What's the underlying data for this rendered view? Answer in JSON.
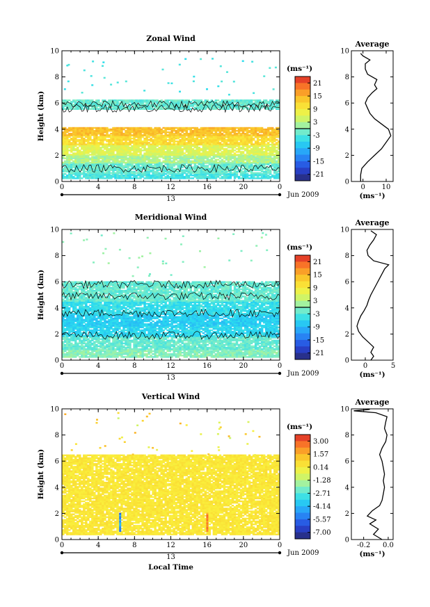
{
  "chart_data": [
    {
      "type": "heatmap",
      "title": "Zonal Wind",
      "ylabel": "Height (km)",
      "xlabel": "",
      "x_tick_labels": [
        "0",
        "4",
        "8",
        "12",
        "16",
        "20",
        "0"
      ],
      "xlim": [
        0,
        24
      ],
      "y_tick_labels": [
        "0",
        "2",
        "4",
        "6",
        "8",
        "10"
      ],
      "ylim": [
        0,
        10
      ],
      "date_label": "13",
      "month_label": "Jun 2009",
      "colorbar": {
        "unit": "(ms⁻¹)",
        "tick_labels": [
          "21",
          "15",
          "9",
          "3",
          "-3",
          "-9",
          "-15",
          "-21"
        ],
        "range": [
          -24,
          24
        ]
      },
      "layers": [
        {
          "h0": 0.2,
          "h1": 0.6,
          "value": -4
        },
        {
          "h0": 0.6,
          "h1": 1.4,
          "value": -2
        },
        {
          "h0": 1.4,
          "h1": 2.0,
          "value": 2
        },
        {
          "h0": 2.0,
          "h1": 2.8,
          "value": 6
        },
        {
          "h0": 2.8,
          "h1": 3.5,
          "value": 11
        },
        {
          "h0": 3.5,
          "h1": 4.1,
          "value": 14
        },
        {
          "h0": 5.5,
          "h1": 6.2,
          "value": -2
        }
      ],
      "sparse_top": {
        "value": -4
      },
      "average": {
        "title": "Average",
        "xlabel": "(ms⁻¹)",
        "x_tick_labels": [
          "0",
          "10"
        ],
        "xlim": [
          -5,
          13
        ],
        "profile": [
          {
            "h": 0.0,
            "v": -1
          },
          {
            "h": 0.5,
            "v": -1
          },
          {
            "h": 1.0,
            "v": -0.5
          },
          {
            "h": 1.5,
            "v": 2
          },
          {
            "h": 2.0,
            "v": 5
          },
          {
            "h": 2.5,
            "v": 8
          },
          {
            "h": 3.0,
            "v": 10
          },
          {
            "h": 3.5,
            "v": 12
          },
          {
            "h": 4.0,
            "v": 11
          },
          {
            "h": 4.4,
            "v": 8
          },
          {
            "h": 4.8,
            "v": 5
          },
          {
            "h": 5.2,
            "v": 3
          },
          {
            "h": 5.6,
            "v": 2
          },
          {
            "h": 6.0,
            "v": 1
          },
          {
            "h": 6.4,
            "v": 2
          },
          {
            "h": 6.8,
            "v": 4
          },
          {
            "h": 7.1,
            "v": 6
          },
          {
            "h": 7.4,
            "v": 5
          },
          {
            "h": 7.8,
            "v": 6
          },
          {
            "h": 8.2,
            "v": 2
          },
          {
            "h": 8.6,
            "v": 1
          },
          {
            "h": 9.0,
            "v": 1
          },
          {
            "h": 9.3,
            "v": 3
          },
          {
            "h": 9.6,
            "v": 0
          },
          {
            "h": 9.8,
            "v": -1
          }
        ]
      }
    },
    {
      "type": "heatmap",
      "title": "Meridional Wind",
      "ylabel": "Height (km)",
      "xlabel": "",
      "x_tick_labels": [
        "0",
        "4",
        "8",
        "12",
        "16",
        "20",
        "0"
      ],
      "xlim": [
        0,
        24
      ],
      "y_tick_labels": [
        "0",
        "2",
        "4",
        "6",
        "8",
        "10"
      ],
      "ylim": [
        0,
        10
      ],
      "date_label": "13",
      "month_label": "Jun 2009",
      "colorbar": {
        "unit": "(ms⁻¹)",
        "tick_labels": [
          "21",
          "15",
          "9",
          "3",
          "-3",
          "-9",
          "-15",
          "-21"
        ],
        "range": [
          -24,
          24
        ]
      },
      "layers": [
        {
          "h0": 0.2,
          "h1": 0.8,
          "value": 0
        },
        {
          "h0": 0.8,
          "h1": 1.8,
          "value": -2
        },
        {
          "h0": 1.8,
          "h1": 2.6,
          "value": -6
        },
        {
          "h0": 2.6,
          "h1": 3.5,
          "value": -7
        },
        {
          "h0": 3.5,
          "h1": 4.5,
          "value": -5
        },
        {
          "h0": 4.5,
          "h1": 6.0,
          "value": -2
        }
      ],
      "sparse_top": {
        "value": 0
      },
      "average": {
        "title": "Average",
        "xlabel": "(ms⁻¹)",
        "x_tick_labels": [
          "0",
          "5"
        ],
        "xlim": [
          -2.5,
          5
        ],
        "profile": [
          {
            "h": 0.0,
            "v": 1
          },
          {
            "h": 0.3,
            "v": 1.5
          },
          {
            "h": 0.6,
            "v": 1
          },
          {
            "h": 1.0,
            "v": 1.5
          },
          {
            "h": 1.4,
            "v": 0.5
          },
          {
            "h": 1.8,
            "v": -0.5
          },
          {
            "h": 2.2,
            "v": -1.2
          },
          {
            "h": 2.6,
            "v": -1.5
          },
          {
            "h": 3.0,
            "v": -1.2
          },
          {
            "h": 3.4,
            "v": -0.8
          },
          {
            "h": 3.8,
            "v": -0.2
          },
          {
            "h": 4.2,
            "v": 0.3
          },
          {
            "h": 4.6,
            "v": 0.6
          },
          {
            "h": 5.0,
            "v": 1.0
          },
          {
            "h": 5.4,
            "v": 1.5
          },
          {
            "h": 5.8,
            "v": 2.0
          },
          {
            "h": 6.2,
            "v": 2.5
          },
          {
            "h": 6.6,
            "v": 3.0
          },
          {
            "h": 7.0,
            "v": 3.5
          },
          {
            "h": 7.3,
            "v": 4.2
          },
          {
            "h": 7.6,
            "v": 1.5
          },
          {
            "h": 8.0,
            "v": 0.5
          },
          {
            "h": 8.4,
            "v": 0.3
          },
          {
            "h": 8.8,
            "v": 0.8
          },
          {
            "h": 9.2,
            "v": 1.5
          },
          {
            "h": 9.6,
            "v": 2.0
          },
          {
            "h": 9.9,
            "v": 1.0
          }
        ]
      }
    },
    {
      "type": "heatmap",
      "title": "Vertical Wind",
      "ylabel": "Height (km)",
      "xlabel": "Local Time",
      "x_tick_labels": [
        "0",
        "4",
        "8",
        "12",
        "16",
        "20",
        "0"
      ],
      "xlim": [
        0,
        24
      ],
      "y_tick_labels": [
        "0",
        "2",
        "4",
        "6",
        "8",
        "10"
      ],
      "ylim": [
        0,
        10
      ],
      "date_label": "13",
      "month_label": "Jun 2009",
      "colorbar": {
        "unit": "(ms⁻¹)",
        "tick_labels": [
          "3.00",
          "1.57",
          "0.14",
          "-1.28",
          "-2.71",
          "-4.14",
          "-5.57",
          "-7.00"
        ],
        "range": [
          -7.7,
          3.7
        ]
      },
      "layers": [
        {
          "h0": 0.35,
          "h1": 6.5,
          "value": 0.3
        }
      ],
      "sparse_top": {
        "value": 0.4
      },
      "average": {
        "title": "Average",
        "xlabel": "(ms⁻¹)",
        "x_tick_labels": [
          "-0.2",
          "0.0"
        ],
        "xlim": [
          -0.3,
          0.04
        ],
        "profile": [
          {
            "h": 0.0,
            "v": -0.05
          },
          {
            "h": 0.4,
            "v": -0.12
          },
          {
            "h": 0.8,
            "v": -0.08
          },
          {
            "h": 1.2,
            "v": -0.15
          },
          {
            "h": 1.5,
            "v": -0.1
          },
          {
            "h": 1.8,
            "v": -0.17
          },
          {
            "h": 2.2,
            "v": -0.13
          },
          {
            "h": 2.6,
            "v": -0.07
          },
          {
            "h": 3.0,
            "v": -0.05
          },
          {
            "h": 3.5,
            "v": -0.04
          },
          {
            "h": 4.0,
            "v": -0.03
          },
          {
            "h": 4.5,
            "v": -0.04
          },
          {
            "h": 5.0,
            "v": -0.03
          },
          {
            "h": 5.5,
            "v": -0.04
          },
          {
            "h": 6.0,
            "v": -0.05
          },
          {
            "h": 6.5,
            "v": -0.07
          },
          {
            "h": 7.0,
            "v": -0.05
          },
          {
            "h": 7.5,
            "v": -0.02
          },
          {
            "h": 8.0,
            "v": -0.01
          },
          {
            "h": 8.5,
            "v": -0.03
          },
          {
            "h": 9.0,
            "v": -0.02
          },
          {
            "h": 9.4,
            "v": -0.01
          },
          {
            "h": 9.7,
            "v": -0.1
          },
          {
            "h": 9.85,
            "v": -0.28
          },
          {
            "h": 9.95,
            "v": -0.15
          }
        ]
      }
    }
  ]
}
